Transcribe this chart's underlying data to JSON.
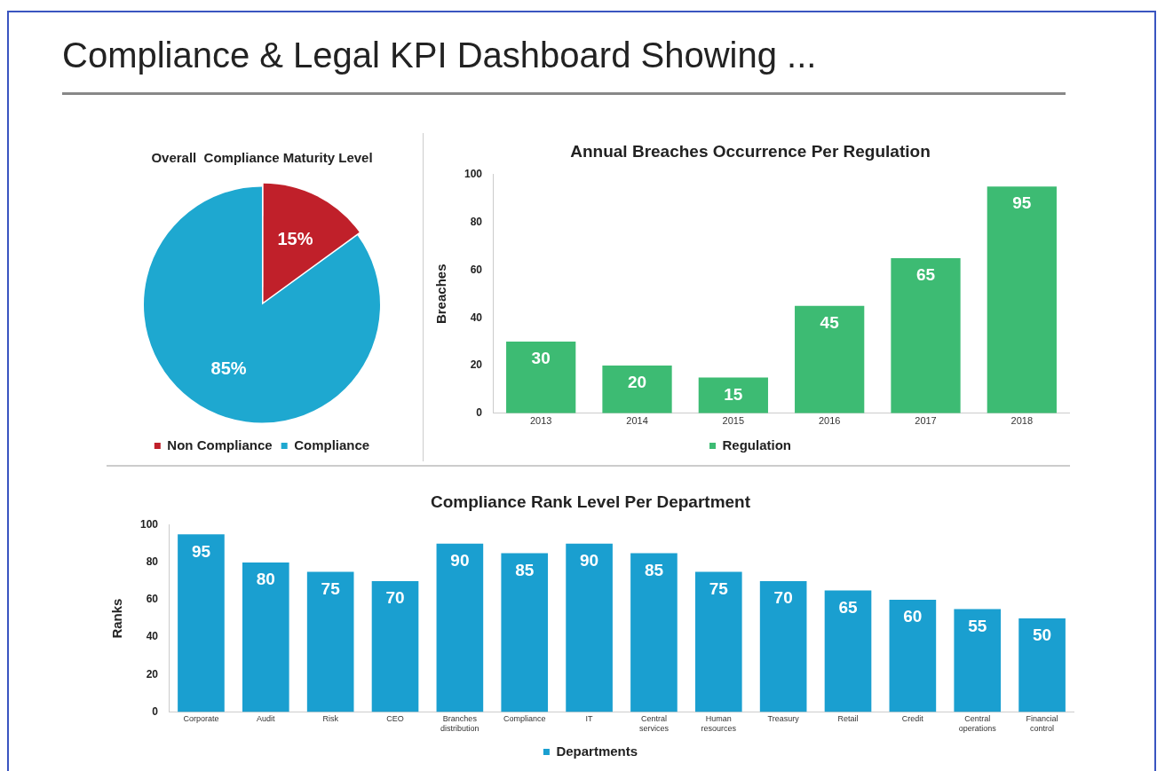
{
  "chart_data": [
    {
      "type": "pie",
      "title": "Overall  Compliance Maturity Level",
      "annotations": [
        "Compliance & Legal KPI Dashboard Showing ..."
      ],
      "categories": [
        "Non Compliance",
        "Compliance"
      ],
      "values": [
        15,
        85
      ],
      "colors": [
        "#c0202a",
        "#1ea8d0"
      ],
      "value_labels": [
        "15%",
        "85%"
      ],
      "legend": "bottom"
    },
    {
      "type": "bar",
      "title": "Annual Breaches Occurrence Per Regulation",
      "ylabel": "Breaches",
      "categories": [
        "2013",
        "2014",
        "2015",
        "2016",
        "2017",
        "2018"
      ],
      "series": [
        {
          "name": "Regulation",
          "color": "#3dbb73",
          "values": [
            30,
            20,
            15,
            45,
            65,
            95
          ]
        }
      ],
      "ylim": [
        0,
        100
      ],
      "yticks": [
        0,
        20,
        40,
        60,
        80,
        100
      ],
      "grid": false,
      "legend": "bottom",
      "data_labels": true
    },
    {
      "type": "bar",
      "title": "Compliance Rank Level Per Department",
      "ylabel": "Ranks",
      "categories": [
        "Corporate",
        "Audit",
        "Risk",
        "CEO",
        "Branches distribution",
        "Compliance",
        "IT",
        "Central services",
        "Human resources",
        "Treasury",
        "Retail",
        "Credit",
        "Central operations",
        "Financial control"
      ],
      "series": [
        {
          "name": "Departments",
          "color": "#1a9fd0",
          "values": [
            95,
            80,
            75,
            70,
            90,
            85,
            90,
            85,
            75,
            70,
            65,
            60,
            55,
            50
          ]
        }
      ],
      "ylim": [
        0,
        100
      ],
      "yticks": [
        0,
        20,
        40,
        60,
        80,
        100
      ],
      "grid": false,
      "legend": "bottom",
      "data_labels": true
    }
  ]
}
